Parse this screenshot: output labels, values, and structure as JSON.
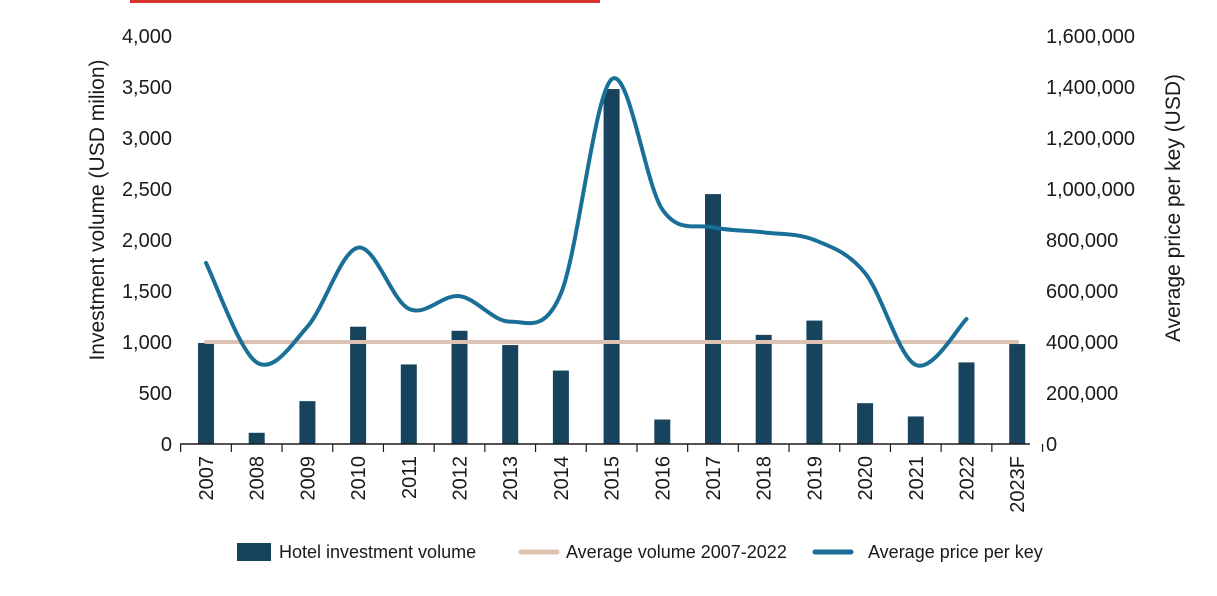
{
  "chart_data": {
    "type": "bar",
    "title": "",
    "categories": [
      "2007",
      "2008",
      "2009",
      "2010",
      "2011",
      "2012",
      "2013",
      "2014",
      "2015",
      "2016",
      "2017",
      "2018",
      "2019",
      "2020",
      "2021",
      "2022",
      "2023F"
    ],
    "series": [
      {
        "name": "Hotel investment volume",
        "kind": "bar",
        "axis": "left",
        "values": [
          990,
          110,
          420,
          1150,
          780,
          1110,
          970,
          720,
          3480,
          240,
          2450,
          1070,
          1210,
          400,
          270,
          800,
          980
        ]
      },
      {
        "name": "Average volume 2007-2022",
        "kind": "line",
        "axis": "left",
        "values": [
          1000,
          1000,
          1000,
          1000,
          1000,
          1000,
          1000,
          1000,
          1000,
          1000,
          1000,
          1000,
          1000,
          1000,
          1000,
          1000,
          1000
        ]
      },
      {
        "name": "Average price per key",
        "kind": "smooth-line",
        "axis": "right",
        "values": [
          710000,
          320000,
          460000,
          770000,
          530000,
          580000,
          480000,
          590000,
          1430000,
          920000,
          850000,
          830000,
          800000,
          670000,
          310000,
          490000,
          null
        ]
      }
    ],
    "yleft": {
      "label": "Investment volume (USD milion)",
      "ylim": [
        0,
        4000
      ],
      "ticks": [
        0,
        500,
        1000,
        1500,
        2000,
        2500,
        3000,
        3500,
        4000
      ],
      "tick_labels": [
        "0",
        "500",
        "1,000",
        "1,500",
        "2,000",
        "2,500",
        "3,000",
        "3,500",
        "4,000"
      ]
    },
    "yright": {
      "label": "Average price per key (USD)",
      "ylim": [
        0,
        1600000
      ],
      "ticks": [
        0,
        200000,
        400000,
        600000,
        800000,
        1000000,
        1200000,
        1400000,
        1600000
      ],
      "tick_labels": [
        "0",
        "200,000",
        "400,000",
        "600,000",
        "800,000",
        "1,000,000",
        "1,200,000",
        "1,400,000",
        "1,600,000"
      ]
    },
    "legend": {
      "position": "bottom",
      "entries": [
        "Hotel investment volume",
        "Average volume 2007-2022",
        "Average price per key"
      ]
    },
    "colors": {
      "bar": "#17435e",
      "average": "#dcc3b4",
      "price": "#1a6f97",
      "axis": "#1a1a1a",
      "title_fragment": "#d9332d"
    },
    "grid": false
  }
}
